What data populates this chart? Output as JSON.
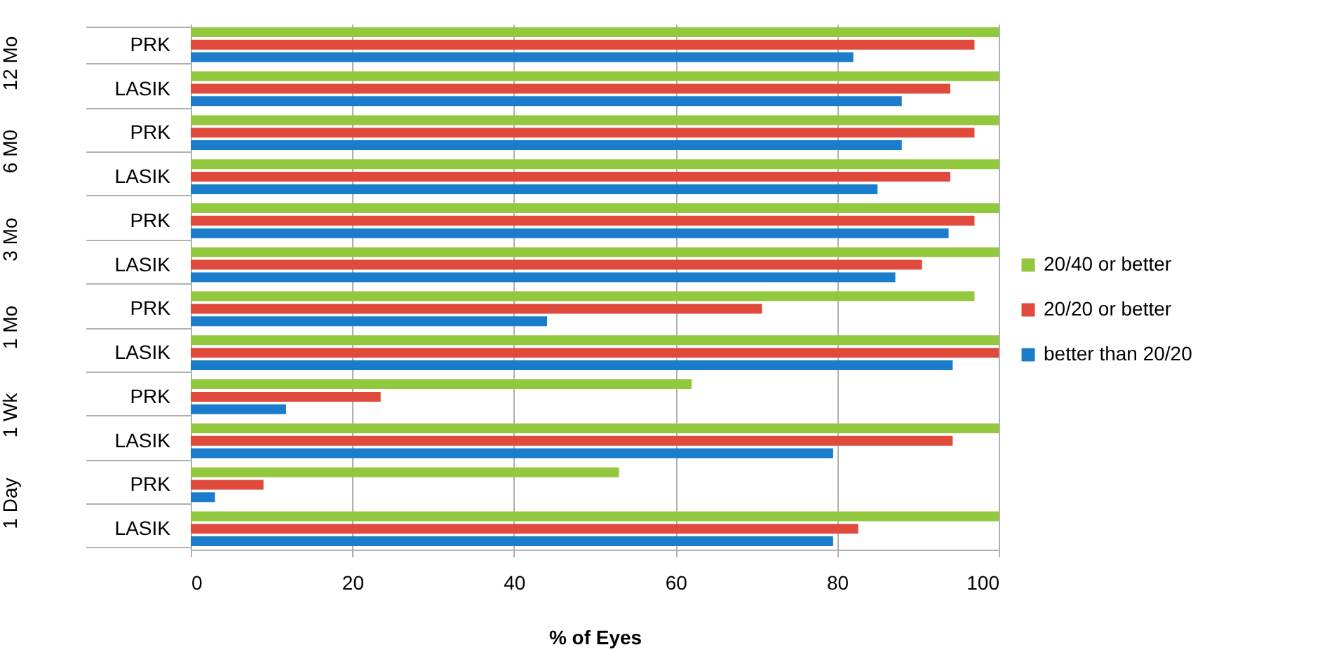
{
  "chart_data": {
    "type": "bar",
    "orientation": "horizontal",
    "xlabel": "% of Eyes",
    "categories": [
      "PRK",
      "LASIK",
      "PRK",
      "LASIK",
      "PRK",
      "LASIK",
      "PRK",
      "LASIK",
      "PRK",
      "LASIK",
      "PRK",
      "LASIK"
    ],
    "annotations": [
      "12 Mo",
      "6 M0",
      "3 Mo",
      "1 Mo",
      "1 Wk",
      "1 Day"
    ],
    "series": [
      {
        "name": "20/40 or better",
        "color": "#92c83e",
        "values": [
          100,
          100,
          100,
          100,
          100,
          100,
          97,
          100,
          62,
          100,
          53,
          100
        ]
      },
      {
        "name": "20/20 or better",
        "color": "#e04a3c",
        "values": [
          97,
          94,
          97,
          94,
          97,
          90.5,
          70.7,
          100,
          23.5,
          94.3,
          9,
          82.6
        ]
      },
      {
        "name": "better than 20/20",
        "color": "#1b7ccc",
        "values": [
          82,
          88,
          88,
          85,
          93.8,
          87.2,
          44.1,
          94.3,
          11.8,
          79.5,
          3,
          79.5
        ]
      }
    ],
    "xlim": [
      0,
      100
    ],
    "xticks": [
      0,
      20,
      40,
      60,
      80,
      100
    ],
    "grid": "x",
    "legend": "right"
  }
}
